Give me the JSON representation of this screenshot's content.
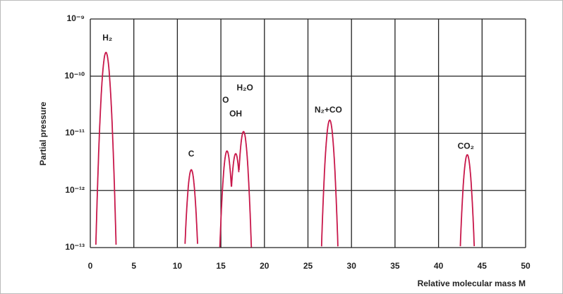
{
  "chart_data": {
    "type": "line",
    "log_y": true,
    "grid": true,
    "color": "#c8174a",
    "xlabel": "Relative molecular mass M",
    "ylabel": "Partial pressure",
    "xlim": [
      0,
      50
    ],
    "ylim": [
      1e-13,
      1e-09
    ],
    "xticks": [
      0,
      5,
      10,
      15,
      20,
      25,
      30,
      35,
      40,
      45,
      50
    ],
    "yticks": [
      {
        "value": 1e-13,
        "label": "10⁻¹³"
      },
      {
        "value": 1e-12,
        "label": "10⁻¹²"
      },
      {
        "value": 1e-11,
        "label": "10⁻¹¹"
      },
      {
        "value": 1e-10,
        "label": "10⁻¹⁰"
      },
      {
        "value": 1e-09,
        "label": "10⁻⁹"
      }
    ],
    "x": [
      1.8,
      11.6,
      15.7,
      16.7,
      17.6,
      27.5,
      43.3
    ],
    "values": [
      2.6e-10,
      2.3e-12,
      4.9e-12,
      4.4e-12,
      1.07e-11,
      1.7e-11,
      4.2e-12
    ],
    "peak_labels": [
      "H₂",
      "C",
      "O",
      "OH",
      "H₂O",
      "N₂+CO",
      "CO₂"
    ]
  }
}
